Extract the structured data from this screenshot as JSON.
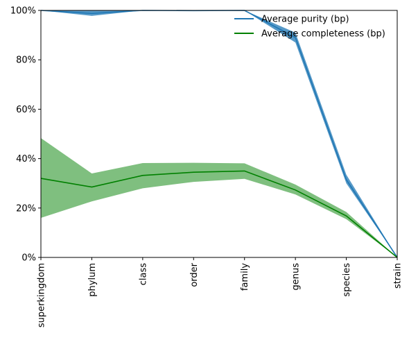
{
  "chart_data": {
    "type": "line",
    "categories": [
      "superkingdom",
      "phylum",
      "class",
      "order",
      "family",
      "genus",
      "species",
      "strain"
    ],
    "y_tick_labels": [
      "0%",
      "20%",
      "40%",
      "60%",
      "80%",
      "100%"
    ],
    "ylim": [
      0,
      100
    ],
    "grid": false,
    "legend_position": "top-right",
    "series": [
      {
        "name": "Average purity (bp)",
        "color": "#1f77b4",
        "band_color": "#1f77b4",
        "values": [
          100,
          98.8,
          100,
          99.9,
          100,
          89,
          31.5,
          0
        ],
        "band_upper": [
          100,
          100,
          100,
          100,
          100,
          91,
          33.5,
          0
        ],
        "band_lower": [
          100,
          97.8,
          100,
          99.8,
          100,
          87,
          30,
          0
        ]
      },
      {
        "name": "Average completeness (bp)",
        "color": "#008000",
        "band_color": "#008000",
        "values": [
          32,
          28.5,
          33.2,
          34.5,
          35,
          27.3,
          16.8,
          0
        ],
        "band_upper": [
          48.3,
          34,
          38.2,
          38.3,
          38.1,
          29.5,
          18.4,
          0
        ],
        "band_lower": [
          16,
          22.7,
          28,
          30.6,
          31.8,
          25.5,
          15.5,
          0
        ]
      }
    ]
  }
}
